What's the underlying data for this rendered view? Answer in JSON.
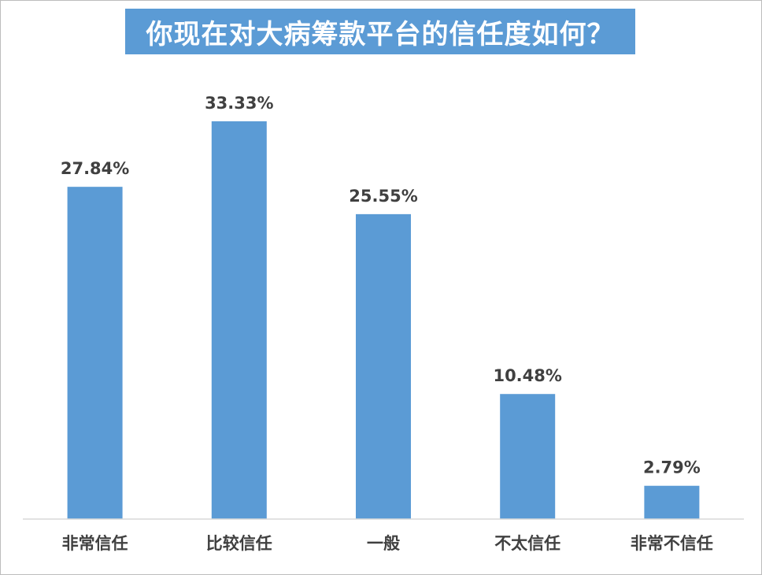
{
  "chart_data": {
    "type": "bar",
    "title": "你现在对大病筹款平台的信任度如何？",
    "categories": [
      "非常信任",
      "比较信任",
      "一般",
      "不太信任",
      "非常不信任"
    ],
    "values": [
      27.84,
      33.33,
      25.55,
      10.48,
      2.79
    ],
    "value_labels": [
      "27.84%",
      "33.33%",
      "25.55%",
      "10.48%",
      "2.79%"
    ],
    "ylim": [
      0,
      40
    ],
    "grid": false,
    "legend": "none",
    "bar_color": "#5b9bd5",
    "title_bg_color": "#5b9bd5"
  }
}
